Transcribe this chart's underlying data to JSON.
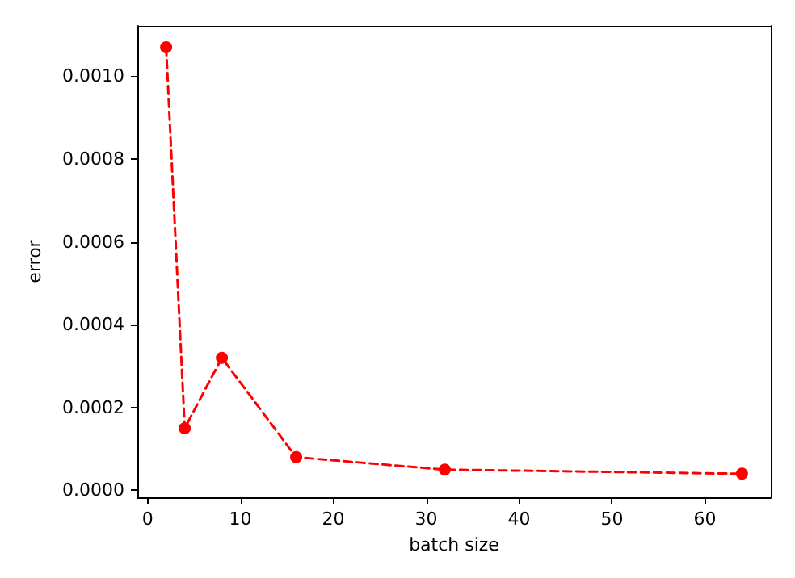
{
  "chart_data": {
    "type": "line",
    "xlabel": "batch size",
    "ylabel": "error",
    "x": [
      2,
      4,
      8,
      16,
      32,
      64
    ],
    "series": [
      {
        "color": "#ff0000",
        "values": [
          0.00107,
          0.00015,
          0.00032,
          8e-05,
          5e-05,
          4e-05
        ]
      }
    ],
    "xlim": [
      -1.1,
      67.1
    ],
    "xticks": [
      0,
      10,
      20,
      30,
      40,
      50,
      60
    ],
    "ylim": [
      -1.68e-05,
      0.0011218
    ],
    "yticks": [
      {
        "value": 0,
        "label": "0.0000"
      },
      {
        "value": 0.0002,
        "label": "0.0002"
      },
      {
        "value": 0.0004,
        "label": "0.0004"
      },
      {
        "value": 0.0006,
        "label": "0.0006"
      },
      {
        "value": 0.0008,
        "label": "0.0008"
      },
      {
        "value": 0.001,
        "label": "0.0010"
      }
    ],
    "marker": "circle",
    "line_style": "dashed",
    "grid": false
  }
}
